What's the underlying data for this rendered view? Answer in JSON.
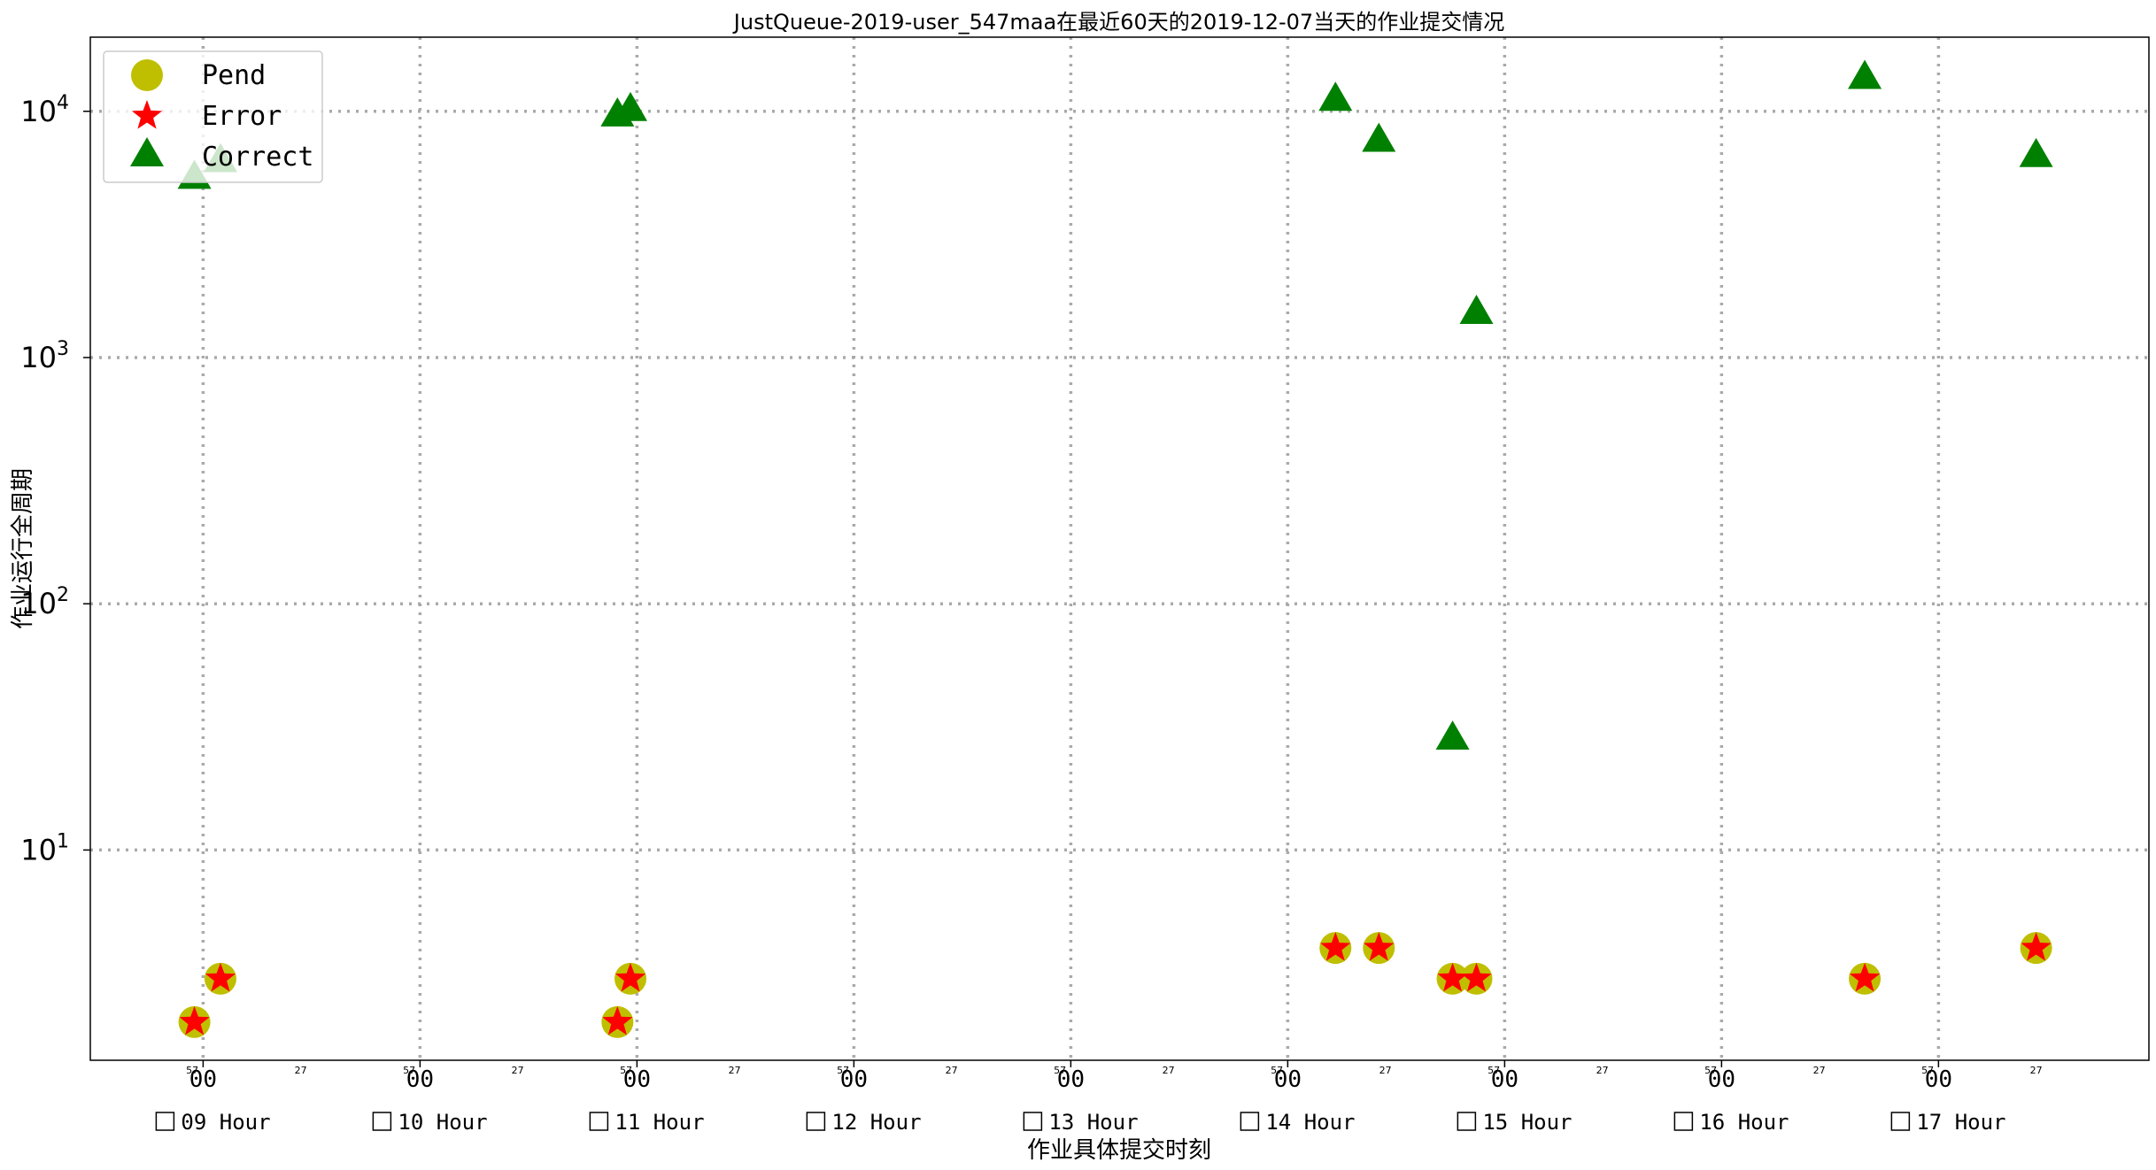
{
  "chart_data": {
    "type": "scatter",
    "title": "JustQueue-2019-user_547maa在最近60天的2019-12-07当天的作业提交情况",
    "xlabel": "作业具体提交时刻",
    "ylabel": "作业运行全周期",
    "y_scale": "log",
    "ylim": [
      1.4,
      20000
    ],
    "xlim": [
      8.48,
      17.97
    ],
    "grid": true,
    "legend_position": "top-left",
    "x_major_ticks": [
      9,
      10,
      11,
      12,
      13,
      14,
      15,
      16,
      17
    ],
    "x_major_tick_label": "00",
    "x_minor_ticks": [
      8.95,
      9.45,
      9.95,
      10.45,
      10.95,
      11.45,
      11.95,
      12.45,
      12.95,
      13.45,
      13.95,
      14.45,
      14.95,
      15.45,
      15.95,
      16.45,
      16.95,
      17.45
    ],
    "x_minor_tick_labels": [
      "57",
      "27",
      "57",
      "27",
      "57",
      "27",
      "57",
      "27",
      "57",
      "27",
      "57",
      "27",
      "57",
      "27",
      "57",
      "27",
      "57",
      "27"
    ],
    "y_ticks": [
      10,
      100,
      1000,
      10000
    ],
    "y_tick_bases": [
      "10",
      "10",
      "10",
      "10"
    ],
    "y_tick_exps": [
      "1",
      "2",
      "3",
      "4"
    ],
    "hour_checkboxes": [
      "09 Hour",
      "10 Hour",
      "11 Hour",
      "12 Hour",
      "13 Hour",
      "14 Hour",
      "15 Hour",
      "16 Hour",
      "17 Hour"
    ],
    "series": [
      {
        "name": "Pend",
        "color": "#bfbf00",
        "marker": "circle",
        "points": [
          {
            "x": 8.96,
            "y": 2
          },
          {
            "x": 9.08,
            "y": 3
          },
          {
            "x": 10.91,
            "y": 2
          },
          {
            "x": 10.97,
            "y": 3
          },
          {
            "x": 14.22,
            "y": 4
          },
          {
            "x": 14.42,
            "y": 4
          },
          {
            "x": 14.76,
            "y": 3
          },
          {
            "x": 14.87,
            "y": 3
          },
          {
            "x": 16.66,
            "y": 3
          },
          {
            "x": 17.45,
            "y": 4
          }
        ]
      },
      {
        "name": "Error",
        "color": "#ff0000",
        "marker": "star",
        "points": [
          {
            "x": 8.96,
            "y": 2
          },
          {
            "x": 9.08,
            "y": 3
          },
          {
            "x": 10.91,
            "y": 2
          },
          {
            "x": 10.97,
            "y": 3
          },
          {
            "x": 14.22,
            "y": 4
          },
          {
            "x": 14.42,
            "y": 4
          },
          {
            "x": 14.76,
            "y": 3
          },
          {
            "x": 14.87,
            "y": 3
          },
          {
            "x": 16.66,
            "y": 3
          },
          {
            "x": 17.45,
            "y": 4
          }
        ]
      },
      {
        "name": "Correct",
        "color": "#008000",
        "marker": "triangle",
        "points": [
          {
            "x": 8.96,
            "y": 5300
          },
          {
            "x": 9.08,
            "y": 6200
          },
          {
            "x": 10.91,
            "y": 9500
          },
          {
            "x": 10.97,
            "y": 10000
          },
          {
            "x": 14.22,
            "y": 11000
          },
          {
            "x": 14.42,
            "y": 7500
          },
          {
            "x": 14.76,
            "y": 28
          },
          {
            "x": 14.87,
            "y": 1500
          },
          {
            "x": 16.66,
            "y": 13500
          },
          {
            "x": 17.45,
            "y": 6500
          }
        ]
      }
    ]
  }
}
